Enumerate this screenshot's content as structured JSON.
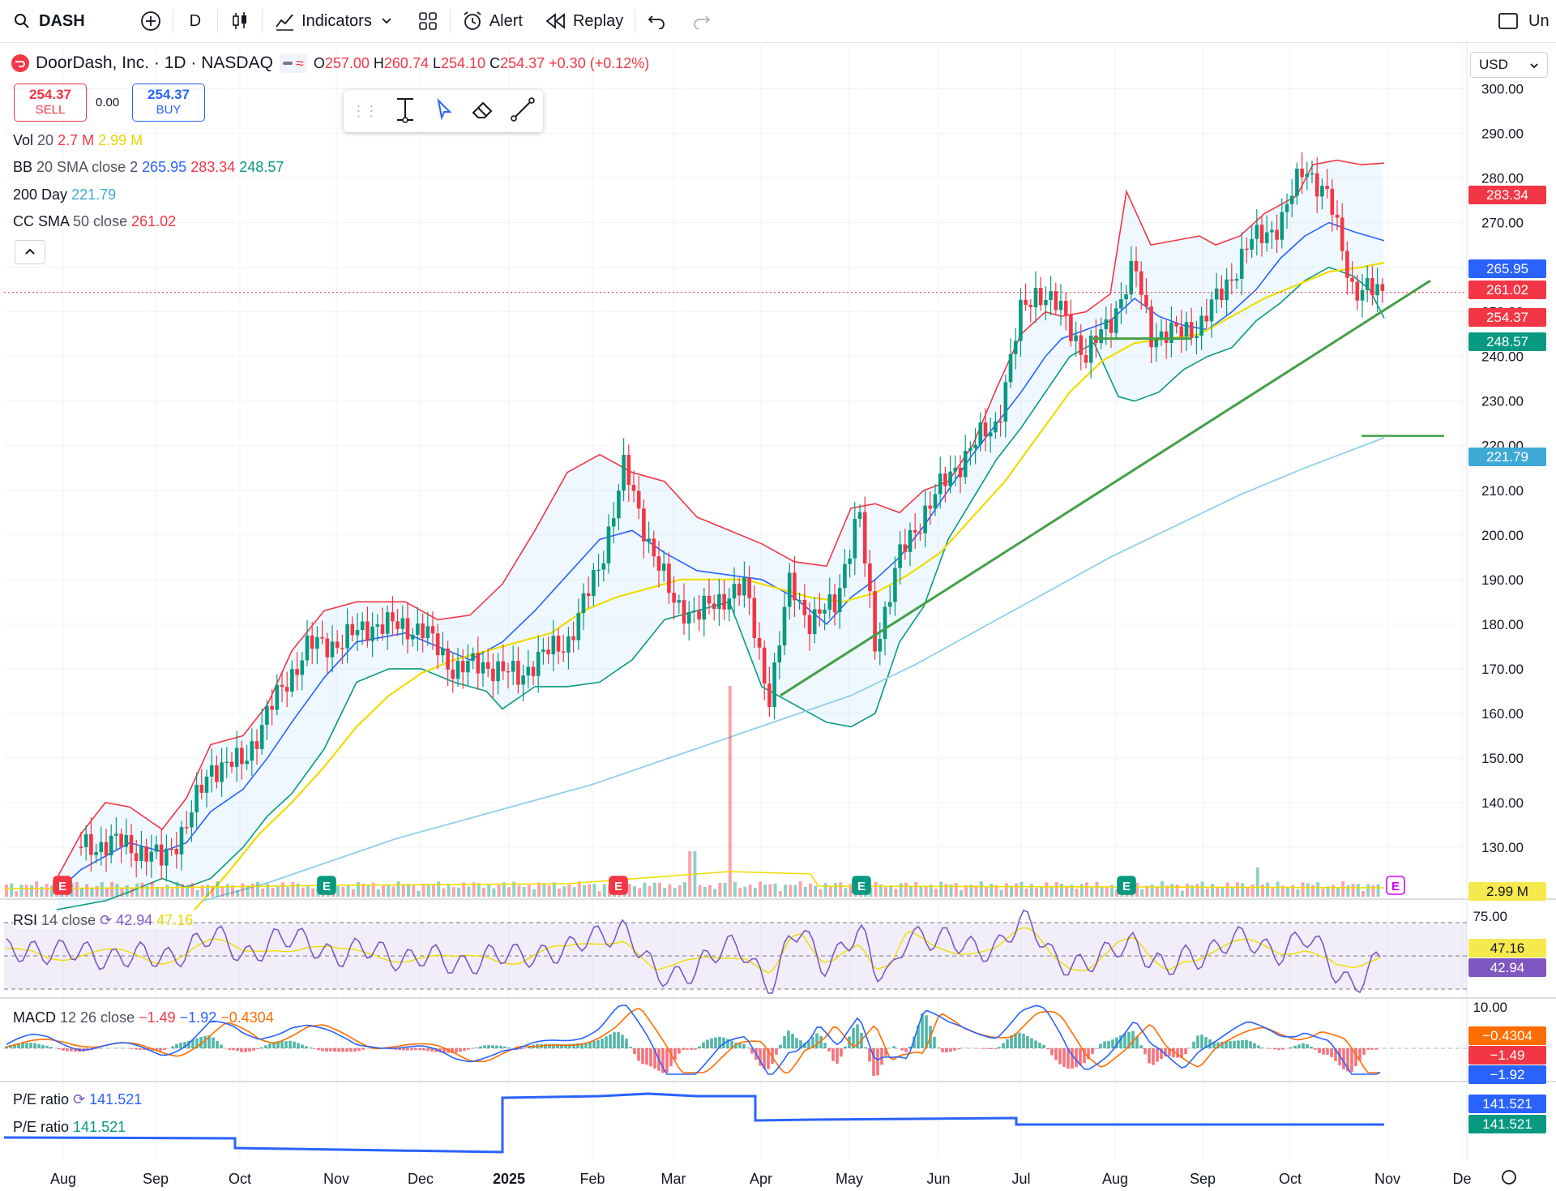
{
  "toolbar": {
    "symbol": "DASH",
    "interval": "D",
    "indicators_label": "Indicators",
    "alert_label": "Alert",
    "replay_label": "Replay",
    "right_label": "Un"
  },
  "header": {
    "name": "DoorDash, Inc. · 1D · NASDAQ",
    "o_label": "O",
    "o": "257.00",
    "h_label": "H",
    "h": "260.74",
    "l_label": "L",
    "l": "254.10",
    "c_label": "C",
    "c": "254.37",
    "change": "+0.30 (+0.12%)"
  },
  "trade": {
    "sell_price": "254.37",
    "sell_label": "SELL",
    "spread": "0.00",
    "buy_price": "254.37",
    "buy_label": "BUY"
  },
  "currency": "USD",
  "indicators": {
    "vol": {
      "name": "Vol",
      "param": "20",
      "v1": "2.7 M",
      "v2": "2.99 M"
    },
    "bb": {
      "name": "BB",
      "param": "20 SMA close 2",
      "basis": "265.95",
      "upper": "283.34",
      "lower": "248.57"
    },
    "ma200": {
      "name": "200 Day",
      "value": "221.79"
    },
    "cc": {
      "name": "CC SMA",
      "param": "50 close",
      "value": "261.02"
    },
    "rsi": {
      "name": "RSI",
      "param": "14 close",
      "v1": "42.94",
      "v2": "47.16"
    },
    "macd": {
      "name": "MACD",
      "param": "12 26 close",
      "v1": "−1.49",
      "v2": "−1.92",
      "v3": "−0.4304"
    },
    "pe1": {
      "name": "P/E ratio",
      "value": "141.521"
    },
    "pe2": {
      "name": "P/E ratio",
      "value": "141.521"
    }
  },
  "price_tags": {
    "upper": "283.34",
    "basis": "265.95",
    "cc": "261.02",
    "last": "254.37",
    "lower": "248.57",
    "ma200": "221.79",
    "vol": "2.99 M",
    "rsi_sig": "47.16",
    "rsi": "42.94",
    "macd_hist": "−0.4304",
    "macd_line": "−1.49",
    "macd_sig": "−1.92",
    "pe1": "141.521",
    "pe2": "141.521"
  },
  "colors": {
    "up": "#089981",
    "down": "#f23645",
    "bb_basis": "#2962ff",
    "sma50": "#e6d800",
    "ma200": "#7ec8e3",
    "trend": "#43a047",
    "rsi": "#7e57c2",
    "macd_signal": "#ff6d00"
  },
  "chart_data": {
    "type": "line",
    "title": "DoorDash, Inc. · 1D · NASDAQ",
    "x_labels": [
      "Aug",
      "Sep",
      "Oct",
      "Nov",
      "Dec",
      "2025",
      "Feb",
      "Mar",
      "Apr",
      "May",
      "Jun",
      "Jul",
      "Aug",
      "Sep",
      "Oct",
      "Nov",
      "De"
    ],
    "y_ticks": [
      130,
      140,
      150,
      160,
      170,
      180,
      190,
      200,
      210,
      220,
      230,
      240,
      250,
      260,
      270,
      280,
      290,
      300
    ],
    "ylim": [
      120,
      305
    ],
    "rsi_ticks": [
      "75.00"
    ],
    "macd_ticks": [
      "10.00"
    ],
    "grid": true,
    "series": [
      {
        "name": "Price (close)",
        "points": [
          [
            0,
            120
          ],
          [
            40,
            128
          ],
          [
            90,
            130
          ],
          [
            150,
            131
          ],
          [
            200,
            127
          ],
          [
            230,
            135
          ],
          [
            260,
            148
          ],
          [
            300,
            149
          ],
          [
            330,
            160
          ],
          [
            380,
            175
          ],
          [
            420,
            176
          ],
          [
            460,
            180
          ],
          [
            520,
            179
          ],
          [
            560,
            170
          ],
          [
            600,
            171
          ],
          [
            640,
            168
          ],
          [
            660,
            172
          ],
          [
            700,
            176
          ],
          [
            740,
            193
          ],
          [
            770,
            215
          ],
          [
            800,
            199
          ],
          [
            830,
            185
          ],
          [
            860,
            182
          ],
          [
            900,
            187
          ],
          [
            920,
            188
          ],
          [
            950,
            163
          ],
          [
            975,
            190
          ],
          [
            1000,
            180
          ],
          [
            1030,
            185
          ],
          [
            1060,
            205
          ],
          [
            1080,
            175
          ],
          [
            1110,
            195
          ],
          [
            1140,
            205
          ],
          [
            1170,
            213
          ],
          [
            1200,
            220
          ],
          [
            1230,
            225
          ],
          [
            1260,
            250
          ],
          [
            1280,
            255
          ],
          [
            1310,
            250
          ],
          [
            1340,
            240
          ],
          [
            1370,
            248
          ],
          [
            1400,
            260
          ],
          [
            1420,
            245
          ],
          [
            1450,
            245
          ],
          [
            1480,
            247
          ],
          [
            1510,
            255
          ],
          [
            1540,
            265
          ],
          [
            1580,
            270
          ],
          [
            1610,
            283
          ],
          [
            1640,
            275
          ],
          [
            1670,
            255
          ],
          [
            1700,
            254.37
          ]
        ]
      },
      {
        "name": "BB upper",
        "points": [
          [
            70,
            123
          ],
          [
            100,
            133
          ],
          [
            130,
            140
          ],
          [
            160,
            139
          ],
          [
            200,
            134
          ],
          [
            230,
            141
          ],
          [
            260,
            153
          ],
          [
            300,
            155
          ],
          [
            330,
            162
          ],
          [
            360,
            174
          ],
          [
            400,
            183
          ],
          [
            440,
            185
          ],
          [
            500,
            185
          ],
          [
            540,
            181
          ],
          [
            580,
            182
          ],
          [
            620,
            189
          ],
          [
            660,
            201
          ],
          [
            700,
            214
          ],
          [
            740,
            218
          ],
          [
            780,
            214
          ],
          [
            820,
            212
          ],
          [
            860,
            204
          ],
          [
            900,
            201
          ],
          [
            940,
            198
          ],
          [
            980,
            194
          ],
          [
            1020,
            193
          ],
          [
            1050,
            206
          ],
          [
            1080,
            207
          ],
          [
            1110,
            205
          ],
          [
            1140,
            210
          ],
          [
            1170,
            212
          ],
          [
            1200,
            220
          ],
          [
            1230,
            233
          ],
          [
            1260,
            245
          ],
          [
            1290,
            250
          ],
          [
            1310,
            249
          ],
          [
            1340,
            250
          ],
          [
            1370,
            254
          ],
          [
            1390,
            277
          ],
          [
            1420,
            265
          ],
          [
            1450,
            266
          ],
          [
            1480,
            267
          ],
          [
            1500,
            265
          ],
          [
            1530,
            267
          ],
          [
            1560,
            272
          ],
          [
            1600,
            276
          ],
          [
            1620,
            283
          ],
          [
            1650,
            284
          ],
          [
            1680,
            283
          ],
          [
            1708,
            283.34
          ]
        ]
      },
      {
        "name": "BB basis",
        "points": [
          [
            70,
            120
          ],
          [
            100,
            125
          ],
          [
            130,
            128
          ],
          [
            160,
            131
          ],
          [
            200,
            129
          ],
          [
            230,
            131
          ],
          [
            260,
            138
          ],
          [
            300,
            143
          ],
          [
            330,
            150
          ],
          [
            360,
            158
          ],
          [
            400,
            168
          ],
          [
            440,
            176
          ],
          [
            500,
            178
          ],
          [
            540,
            175
          ],
          [
            580,
            172
          ],
          [
            620,
            176
          ],
          [
            660,
            183
          ],
          [
            700,
            191
          ],
          [
            740,
            199
          ],
          [
            780,
            201
          ],
          [
            820,
            196
          ],
          [
            860,
            192
          ],
          [
            900,
            191
          ],
          [
            940,
            190
          ],
          [
            980,
            186
          ],
          [
            1020,
            180
          ],
          [
            1050,
            186
          ],
          [
            1080,
            190
          ],
          [
            1110,
            195
          ],
          [
            1140,
            202
          ],
          [
            1170,
            210
          ],
          [
            1200,
            218
          ],
          [
            1230,
            225
          ],
          [
            1260,
            232
          ],
          [
            1290,
            240
          ],
          [
            1310,
            244
          ],
          [
            1340,
            246
          ],
          [
            1370,
            248
          ],
          [
            1400,
            253
          ],
          [
            1430,
            249
          ],
          [
            1460,
            247
          ],
          [
            1490,
            246
          ],
          [
            1520,
            250
          ],
          [
            1550,
            255
          ],
          [
            1580,
            262
          ],
          [
            1610,
            267
          ],
          [
            1640,
            270
          ],
          [
            1670,
            268
          ],
          [
            1708,
            265.95
          ]
        ]
      },
      {
        "name": "BB lower",
        "points": [
          [
            70,
            116
          ],
          [
            100,
            117
          ],
          [
            130,
            118
          ],
          [
            160,
            120
          ],
          [
            200,
            123
          ],
          [
            230,
            121
          ],
          [
            260,
            123
          ],
          [
            300,
            130
          ],
          [
            330,
            137
          ],
          [
            360,
            142
          ],
          [
            400,
            152
          ],
          [
            440,
            167
          ],
          [
            480,
            170
          ],
          [
            520,
            170
          ],
          [
            560,
            167
          ],
          [
            600,
            165
          ],
          [
            620,
            161
          ],
          [
            660,
            166
          ],
          [
            700,
            166
          ],
          [
            740,
            167
          ],
          [
            780,
            172
          ],
          [
            820,
            181
          ],
          [
            860,
            183
          ],
          [
            900,
            185
          ],
          [
            940,
            166
          ],
          [
            980,
            162
          ],
          [
            1020,
            158
          ],
          [
            1050,
            157
          ],
          [
            1080,
            160
          ],
          [
            1110,
            176
          ],
          [
            1140,
            184
          ],
          [
            1170,
            199
          ],
          [
            1200,
            208
          ],
          [
            1230,
            217
          ],
          [
            1260,
            224
          ],
          [
            1290,
            232
          ],
          [
            1320,
            240
          ],
          [
            1350,
            243
          ],
          [
            1380,
            231
          ],
          [
            1400,
            230
          ],
          [
            1430,
            232
          ],
          [
            1460,
            237
          ],
          [
            1490,
            240
          ],
          [
            1520,
            242
          ],
          [
            1550,
            248
          ],
          [
            1580,
            252
          ],
          [
            1610,
            257
          ],
          [
            1640,
            260
          ],
          [
            1670,
            258
          ],
          [
            1690,
            255
          ],
          [
            1708,
            248.57
          ]
        ]
      },
      {
        "name": "CC SMA 50",
        "points": [
          [
            240,
            116
          ],
          [
            280,
            124
          ],
          [
            320,
            133
          ],
          [
            360,
            140
          ],
          [
            400,
            148
          ],
          [
            440,
            157
          ],
          [
            480,
            164
          ],
          [
            520,
            169
          ],
          [
            560,
            172
          ],
          [
            600,
            174
          ],
          [
            640,
            176
          ],
          [
            680,
            178
          ],
          [
            720,
            183
          ],
          [
            760,
            186
          ],
          [
            800,
            188
          ],
          [
            840,
            190
          ],
          [
            880,
            190
          ],
          [
            920,
            190
          ],
          [
            960,
            188
          ],
          [
            1000,
            186
          ],
          [
            1040,
            185
          ],
          [
            1080,
            187
          ],
          [
            1120,
            191
          ],
          [
            1160,
            196
          ],
          [
            1200,
            204
          ],
          [
            1240,
            212
          ],
          [
            1280,
            222
          ],
          [
            1320,
            232
          ],
          [
            1360,
            239
          ],
          [
            1400,
            243
          ],
          [
            1440,
            244
          ],
          [
            1480,
            245
          ],
          [
            1520,
            249
          ],
          [
            1560,
            253
          ],
          [
            1600,
            256
          ],
          [
            1640,
            259
          ],
          [
            1680,
            260
          ],
          [
            1708,
            261.02
          ]
        ]
      },
      {
        "name": "200 Day",
        "points": [
          [
            250,
            118
          ],
          [
            330,
            122
          ],
          [
            410,
            127
          ],
          [
            490,
            132
          ],
          [
            570,
            136
          ],
          [
            650,
            140
          ],
          [
            730,
            144
          ],
          [
            810,
            149
          ],
          [
            890,
            154
          ],
          [
            970,
            159
          ],
          [
            1050,
            164
          ],
          [
            1130,
            171
          ],
          [
            1210,
            179
          ],
          [
            1290,
            187
          ],
          [
            1370,
            195
          ],
          [
            1450,
            202
          ],
          [
            1530,
            209
          ],
          [
            1610,
            215
          ],
          [
            1708,
            221.79
          ]
        ]
      }
    ]
  }
}
